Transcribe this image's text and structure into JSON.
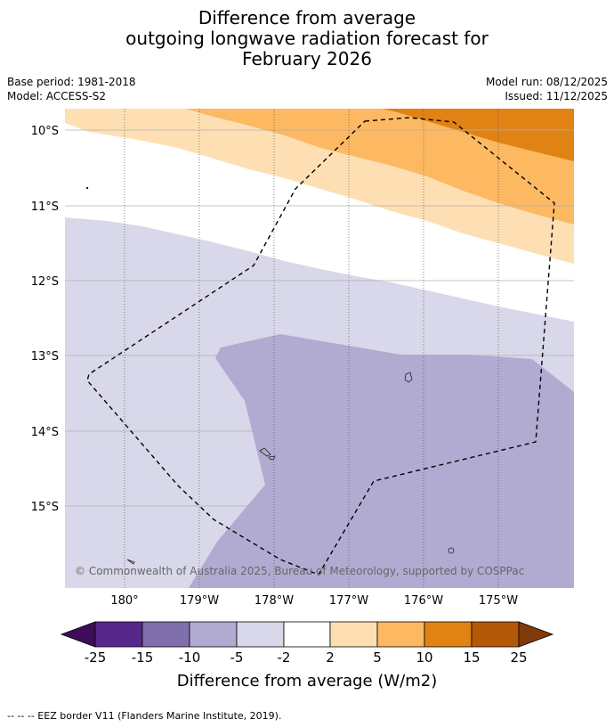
{
  "title": {
    "line1": "Difference from average",
    "line2": "outgoing longwave radiation forecast for",
    "line3": "February 2026"
  },
  "meta": {
    "base_period": "Base period: 1981-2018",
    "model": "Model: ACCESS-S2",
    "model_run": "Model run: 08/12/2025",
    "issued": "Issued: 11/12/2025"
  },
  "map": {
    "lat_labels": [
      "10°S",
      "11°S",
      "12°S",
      "13°S",
      "14°S",
      "15°S"
    ],
    "lon_labels": [
      "180°",
      "179°W",
      "178°W",
      "177°W",
      "176°W",
      "175°W"
    ],
    "copyright": "© Commonwealth of Australia 2025, Bureau of Meteorology, supported by COSPPac"
  },
  "legend": {
    "ticks": [
      "-25",
      "-15",
      "-10",
      "-5",
      "-2",
      "2",
      "5",
      "10",
      "15",
      "25"
    ],
    "colors": [
      "#3f0c5c",
      "#57268a",
      "#7f6fab",
      "#b1abd2",
      "#d8d8ea",
      "#ffffff",
      "#fedfb3",
      "#fdb862",
      "#e08214",
      "#b35806",
      "#7f3b08"
    ],
    "label": "Difference from average (W/m2)"
  },
  "footnote": "--  --  -- EEZ border V11 (Flanders Marine Institute, 2019)."
}
